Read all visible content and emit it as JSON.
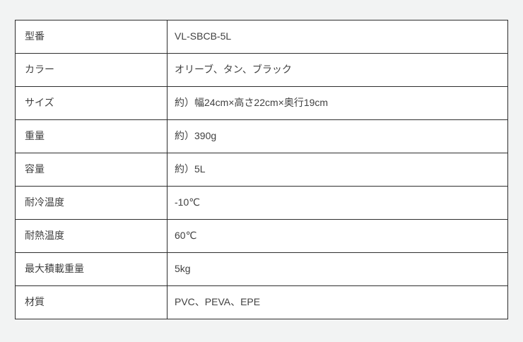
{
  "page": {
    "background_color": "#f2f3f3"
  },
  "spec_table": {
    "border_color": "#2e2e2e",
    "text_color": "#404040",
    "cell_background": "#ffffff",
    "rows": [
      {
        "label": "型番",
        "value": "VL-SBCB-5L"
      },
      {
        "label": "カラー",
        "value": "オリーブ、タン、ブラック"
      },
      {
        "label": "サイズ",
        "value": "約）幅24cm×高さ22cm×奥行19cm"
      },
      {
        "label": "重量",
        "value": "約）390g"
      },
      {
        "label": "容量",
        "value": "約）5L"
      },
      {
        "label": "耐冷温度",
        "value": "-10℃"
      },
      {
        "label": "耐熱温度",
        "value": "60℃"
      },
      {
        "label": "最大積載重量",
        "value": "5kg"
      },
      {
        "label": "材質",
        "value": "PVC、PEVA、EPE"
      }
    ]
  }
}
